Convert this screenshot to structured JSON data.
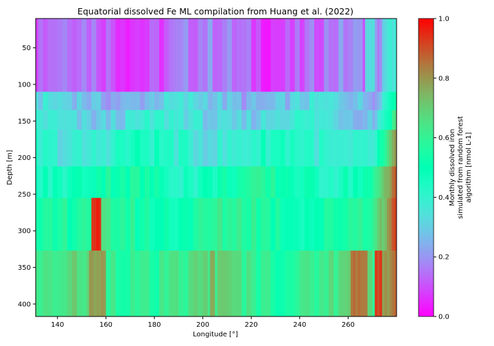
{
  "chart_data": {
    "type": "heatmap",
    "title": "Equatorial dissolved Fe ML compilation from Huang et al. (2022)",
    "xlabel": "Longitude [°]",
    "ylabel": "Depth [m]",
    "xlim": [
      131,
      280
    ],
    "ylim": [
      417,
      10
    ],
    "x_ticks": [
      "140",
      "160",
      "180",
      "200",
      "220",
      "240",
      "260"
    ],
    "x_tick_values": [
      140,
      160,
      180,
      200,
      220,
      240,
      260
    ],
    "y_ticks": [
      "50",
      "100",
      "150",
      "200",
      "250",
      "300",
      "350",
      "400"
    ],
    "y_tick_values": [
      50,
      100,
      150,
      200,
      250,
      300,
      350,
      400
    ],
    "depth_layers": [
      {
        "top": 10,
        "bottom": 110,
        "mean": 0.13
      },
      {
        "top": 110,
        "bottom": 135,
        "mean": 0.28
      },
      {
        "top": 135,
        "bottom": 162,
        "mean": 0.33
      },
      {
        "top": 162,
        "bottom": 212,
        "mean": 0.4
      },
      {
        "top": 212,
        "bottom": 255,
        "mean": 0.5
      },
      {
        "top": 255,
        "bottom": 327,
        "mean": 0.55
      },
      {
        "top": 327,
        "bottom": 417,
        "mean": 0.62
      }
    ],
    "features": [
      {
        "lon_min": 154,
        "lon_max": 158,
        "depth_min": 255,
        "depth_max": 327,
        "value": 0.95
      },
      {
        "lon_min": 261,
        "lon_max": 268,
        "depth_min": 327,
        "depth_max": 417,
        "value": 0.86
      },
      {
        "lon_min": 271,
        "lon_max": 274,
        "depth_min": 327,
        "depth_max": 417,
        "value": 0.92
      },
      {
        "lon_min": 153,
        "lon_max": 160,
        "depth_min": 327,
        "depth_max": 417,
        "value": 0.78
      },
      {
        "lon_min": 203,
        "lon_max": 205,
        "depth_min": 327,
        "depth_max": 417,
        "value": 0.75
      },
      {
        "lon_min": 267,
        "lon_max": 271,
        "depth_min": 10,
        "depth_max": 110,
        "value": 0.32
      }
    ],
    "colorbar": {
      "label": "Monthly dissolved iron simulated from random forest algorithm [nmol L-1]",
      "label_lines": [
        "Monthly dissolved iron",
        "simulated from random forest",
        "algorithm [nmol L-1]"
      ],
      "range": [
        0.0,
        1.0
      ],
      "ticks": [
        "0.0",
        "0.2",
        "0.4",
        "0.6",
        "0.8",
        "1.0"
      ],
      "tick_values": [
        0.0,
        0.2,
        0.4,
        0.6,
        0.8,
        1.0
      ],
      "colormap": "rainbow"
    }
  }
}
